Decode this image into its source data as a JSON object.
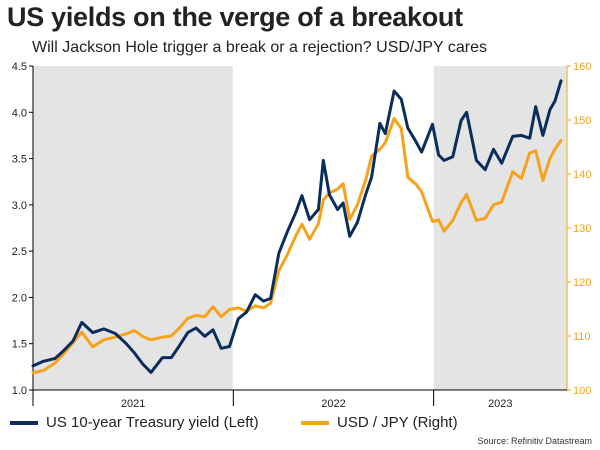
{
  "title": "US yields on the verge of a breakout",
  "subtitle": "Will Jackson Hole trigger a break or a rejection? USD/JPY cares",
  "source": "Source: Refinitiv Datastream",
  "colors": {
    "yield": "#0b2d5b",
    "usdjpy": "#f7a21b",
    "shade": "#e4e4e4",
    "axis": "#000000"
  },
  "legend": [
    {
      "label": "US 10-year Treasury yield (Left)",
      "color": "#0b2d5b"
    },
    {
      "label": "USD / JPY (Right)",
      "color": "#f7a21b"
    }
  ],
  "chart_data": {
    "type": "line",
    "x_tick_labels": [
      "2021",
      "2022",
      "2023"
    ],
    "y_left": {
      "ticks": [
        "1.0",
        "1.5",
        "2.0",
        "2.5",
        "3.0",
        "3.5",
        "4.0",
        "4.5"
      ],
      "lim": [
        1.0,
        4.5
      ]
    },
    "y_right": {
      "ticks": [
        "100",
        "110",
        "120",
        "130",
        "140",
        "150",
        "160"
      ],
      "lim": [
        100,
        160
      ]
    },
    "x_lim": [
      "2021-01-01",
      "2023-09-01"
    ],
    "shaded_periods": [
      [
        "2021-01-01",
        "2021-12-31"
      ],
      [
        "2023-01-01",
        "2023-09-01"
      ]
    ],
    "grid": false,
    "legend_position": "bottom",
    "series": [
      {
        "name": "US 10-year Treasury yield (Left)",
        "axis": "left",
        "x": [
          "2021-01-01",
          "2021-01-20",
          "2021-02-10",
          "2021-02-25",
          "2021-03-15",
          "2021-03-31",
          "2021-04-20",
          "2021-05-10",
          "2021-05-31",
          "2021-06-20",
          "2021-07-05",
          "2021-07-20",
          "2021-08-04",
          "2021-08-25",
          "2021-09-10",
          "2021-09-25",
          "2021-10-10",
          "2021-10-25",
          "2021-11-10",
          "2021-11-25",
          "2021-12-10",
          "2021-12-25",
          "2022-01-10",
          "2022-01-25",
          "2022-02-10",
          "2022-02-25",
          "2022-03-10",
          "2022-03-25",
          "2022-04-10",
          "2022-04-25",
          "2022-05-06",
          "2022-05-20",
          "2022-06-05",
          "2022-06-14",
          "2022-06-25",
          "2022-07-10",
          "2022-07-20",
          "2022-08-01",
          "2022-08-15",
          "2022-08-30",
          "2022-09-10",
          "2022-09-25",
          "2022-10-05",
          "2022-10-21",
          "2022-11-03",
          "2022-11-15",
          "2022-11-30",
          "2022-12-10",
          "2022-12-30",
          "2023-01-10",
          "2023-01-20",
          "2023-02-05",
          "2023-02-20",
          "2023-03-02",
          "2023-03-20",
          "2023-04-05",
          "2023-04-20",
          "2023-05-05",
          "2023-05-25",
          "2023-06-10",
          "2023-06-25",
          "2023-07-06",
          "2023-07-19",
          "2023-08-01",
          "2023-08-10",
          "2023-08-21"
        ],
        "y": [
          1.26,
          1.31,
          1.34,
          1.42,
          1.53,
          1.73,
          1.62,
          1.66,
          1.61,
          1.5,
          1.4,
          1.28,
          1.19,
          1.35,
          1.35,
          1.48,
          1.62,
          1.67,
          1.58,
          1.65,
          1.45,
          1.47,
          1.77,
          1.84,
          2.03,
          1.96,
          1.99,
          2.48,
          2.72,
          2.92,
          3.1,
          2.84,
          2.95,
          3.48,
          3.11,
          2.95,
          3.02,
          2.66,
          2.81,
          3.11,
          3.3,
          3.88,
          3.77,
          4.23,
          4.14,
          3.83,
          3.68,
          3.57,
          3.87,
          3.54,
          3.48,
          3.52,
          3.91,
          4.0,
          3.48,
          3.38,
          3.6,
          3.45,
          3.74,
          3.75,
          3.72,
          4.06,
          3.75,
          4.03,
          4.12,
          4.34
        ]
      },
      {
        "name": "USD / JPY (Right)",
        "axis": "right",
        "x": [
          "2021-01-01",
          "2021-01-20",
          "2021-02-10",
          "2021-02-25",
          "2021-03-15",
          "2021-03-31",
          "2021-04-20",
          "2021-05-10",
          "2021-05-31",
          "2021-06-20",
          "2021-07-05",
          "2021-07-20",
          "2021-08-04",
          "2021-08-25",
          "2021-09-10",
          "2021-09-25",
          "2021-10-10",
          "2021-10-25",
          "2021-11-10",
          "2021-11-25",
          "2021-12-10",
          "2021-12-25",
          "2022-01-10",
          "2022-01-25",
          "2022-02-10",
          "2022-02-25",
          "2022-03-10",
          "2022-03-25",
          "2022-04-10",
          "2022-04-25",
          "2022-05-06",
          "2022-05-20",
          "2022-06-05",
          "2022-06-14",
          "2022-06-25",
          "2022-07-10",
          "2022-07-20",
          "2022-08-01",
          "2022-08-15",
          "2022-08-30",
          "2022-09-10",
          "2022-09-25",
          "2022-10-05",
          "2022-10-21",
          "2022-11-03",
          "2022-11-15",
          "2022-11-30",
          "2022-12-10",
          "2022-12-30",
          "2023-01-10",
          "2023-01-20",
          "2023-02-05",
          "2023-02-20",
          "2023-03-02",
          "2023-03-20",
          "2023-04-05",
          "2023-04-20",
          "2023-05-05",
          "2023-05-25",
          "2023-06-10",
          "2023-06-25",
          "2023-07-06",
          "2023-07-19",
          "2023-08-01",
          "2023-08-10",
          "2023-08-21"
        ],
        "y": [
          103.2,
          103.6,
          105.0,
          106.6,
          108.8,
          110.7,
          108.0,
          109.3,
          109.8,
          110.4,
          111.0,
          109.9,
          109.3,
          109.8,
          110.0,
          111.5,
          113.3,
          113.8,
          113.6,
          115.4,
          113.6,
          114.9,
          115.2,
          114.6,
          115.6,
          115.2,
          116.1,
          122.1,
          125.2,
          128.6,
          130.7,
          127.9,
          130.8,
          135.2,
          136.5,
          137.2,
          138.2,
          131.6,
          134.3,
          138.8,
          143.3,
          144.6,
          145.8,
          150.3,
          148.4,
          139.4,
          138.1,
          136.7,
          131.2,
          131.5,
          129.4,
          131.4,
          134.7,
          136.2,
          131.4,
          131.8,
          134.3,
          134.8,
          140.4,
          139.2,
          143.9,
          144.3,
          138.8,
          142.9,
          144.6,
          146.2
        ]
      }
    ]
  }
}
